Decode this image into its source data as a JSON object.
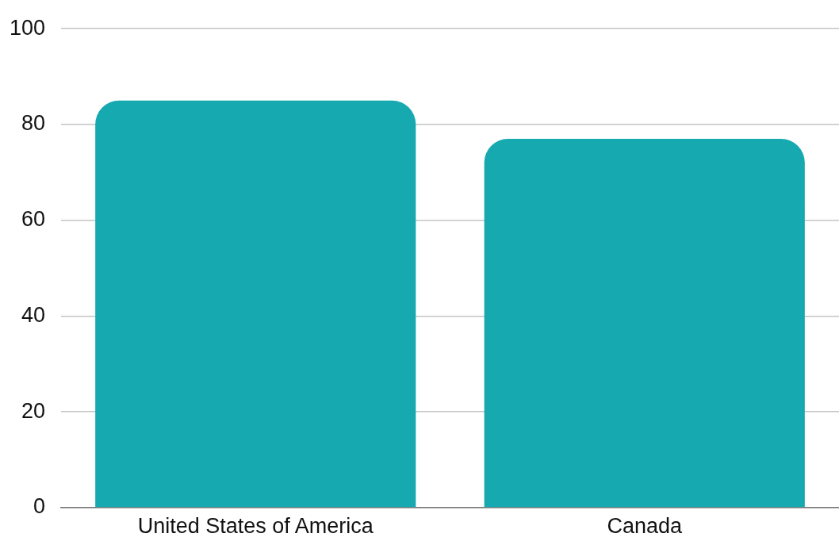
{
  "chart_data": {
    "type": "bar",
    "categories": [
      "United States of America",
      "Canada"
    ],
    "values": [
      85,
      77
    ],
    "color": "#16a9b0",
    "ylim": [
      0,
      100
    ],
    "yticks": [
      0,
      20,
      40,
      60,
      80,
      100
    ],
    "grid": "y"
  }
}
